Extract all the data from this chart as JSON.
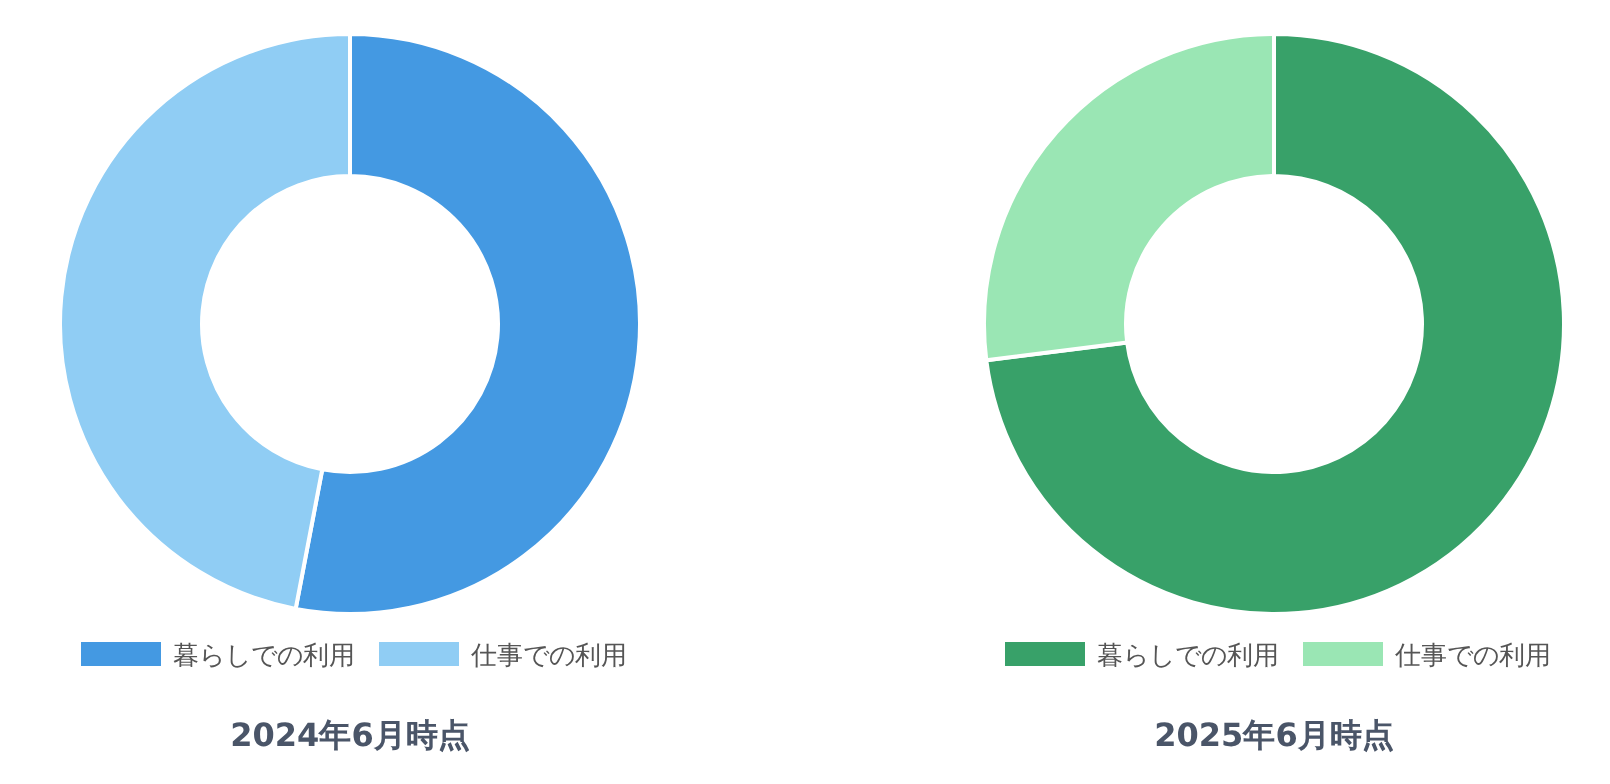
{
  "chart_data": [
    {
      "type": "donut",
      "title": "2024年6月時点",
      "categories": [
        "暮らしでの利用",
        "仕事での利用"
      ],
      "values": [
        53,
        47
      ],
      "colors": [
        "#4499e2",
        "#90cdf4"
      ],
      "legend": "bottom"
    },
    {
      "type": "donut",
      "title": "2025年6月時点",
      "categories": [
        "暮らしでの利用",
        "仕事での利用"
      ],
      "values": [
        73,
        27
      ],
      "colors": [
        "#38a169",
        "#9ae6b4"
      ],
      "legend": "bottom"
    }
  ]
}
